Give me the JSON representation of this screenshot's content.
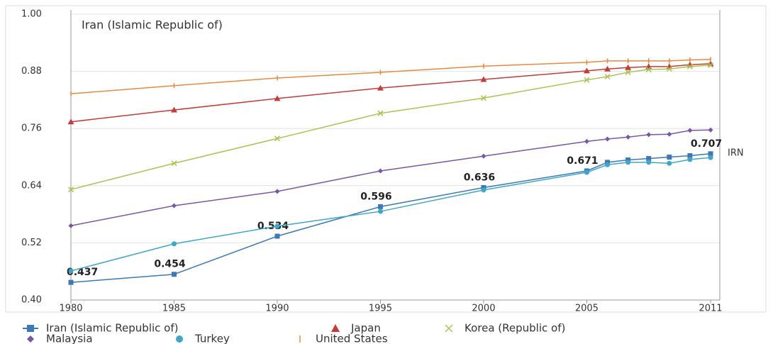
{
  "chart_data": {
    "type": "line",
    "title": "Iran (Islamic Republic of)",
    "end_label": "IRN",
    "x": [
      1980,
      1985,
      1990,
      1995,
      2000,
      2005,
      2006,
      2007,
      2008,
      2009,
      2010,
      2011
    ],
    "xlim": [
      1980,
      2011
    ],
    "xticks": [
      1980,
      1985,
      1990,
      1995,
      2000,
      2005,
      2011
    ],
    "ylim": [
      0.4,
      1.0
    ],
    "yticks": [
      {
        "value": 0.4,
        "label": "0.40"
      },
      0.52,
      0.64,
      0.76,
      0.88,
      {
        "value": 1.0,
        "label": "1.00"
      }
    ],
    "grid": true,
    "legend": "bottom",
    "series": [
      {
        "name": "Iran (Islamic Republic of)",
        "color": "#3d78b8",
        "marker": "square",
        "values": [
          0.437,
          0.454,
          0.534,
          0.596,
          0.636,
          0.671,
          0.689,
          0.694,
          0.697,
          0.7,
          0.703,
          0.707
        ],
        "value_labels": [
          "0.437",
          "0.454",
          "0.534",
          "0.596",
          "0.636",
          "0.671",
          null,
          null,
          null,
          null,
          null,
          "0.707"
        ]
      },
      {
        "name": "Japan",
        "color": "#c43c35",
        "marker": "triangle",
        "values": [
          0.774,
          0.799,
          0.823,
          0.845,
          0.863,
          0.881,
          0.885,
          0.888,
          0.89,
          0.89,
          0.894,
          0.896
        ]
      },
      {
        "name": "Korea (Republic of)",
        "color": "#a9c453",
        "marker": "cross",
        "values": [
          0.632,
          0.687,
          0.739,
          0.792,
          0.824,
          0.862,
          0.869,
          0.878,
          0.884,
          0.885,
          0.89,
          0.893
        ]
      },
      {
        "name": "Malaysia",
        "color": "#7b55a8",
        "marker": "diamond",
        "values": [
          0.556,
          0.598,
          0.628,
          0.671,
          0.702,
          0.733,
          0.738,
          0.742,
          0.747,
          0.748,
          0.756,
          0.757
        ]
      },
      {
        "name": "Turkey",
        "color": "#3ea7c9",
        "marker": "circle",
        "values": [
          0.461,
          0.518,
          0.555,
          0.586,
          0.631,
          0.668,
          0.684,
          0.689,
          0.689,
          0.687,
          0.695,
          0.699
        ]
      },
      {
        "name": "United States",
        "color": "#e8893e",
        "marker": "bar",
        "values": [
          0.833,
          0.85,
          0.866,
          0.878,
          0.891,
          0.899,
          0.902,
          0.902,
          0.902,
          0.902,
          0.904,
          0.905
        ]
      }
    ]
  }
}
